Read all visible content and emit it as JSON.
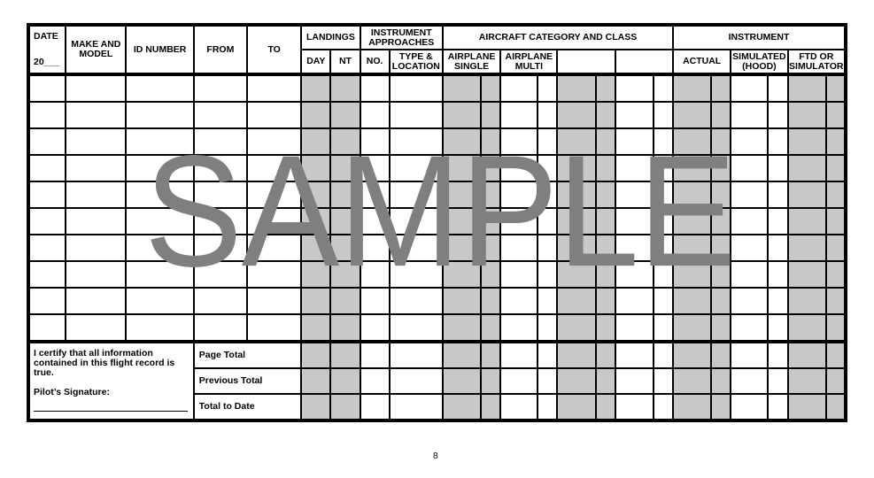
{
  "header": {
    "date": "DATE",
    "year": "20___",
    "make_model": "MAKE AND MODEL",
    "id_number": "ID NUMBER",
    "from": "FROM",
    "to": "TO",
    "landings": "LANDINGS",
    "landings_day": "DAY",
    "landings_nt": "NT",
    "instrument_approaches": "INSTRUMENT APPROACHES",
    "approaches_no": "NO.",
    "approaches_type": "TYPE & LOCATION",
    "aircraft_category": "AIRCRAFT CATEGORY AND CLASS",
    "airplane_single": "AIRPLANE SINGLE",
    "airplane_multi": "AIRPLANE MULTI",
    "category_blank_1": "",
    "category_blank_2": "",
    "instrument": "INSTRUMENT",
    "actual": "ACTUAL",
    "simulated": "SIMULATED (HOOD)",
    "ftd": "FTD OR SIMULATOR"
  },
  "entry_row_count": 10,
  "shaded_color": "#c8c8c8",
  "footer": {
    "certify": "I certify that all information contained in this flight record is true.",
    "signature_label": "Pilot’s Signature:",
    "page_total": "Page Total",
    "previous_total": "Previous Total",
    "total_to_date": "Total to Date"
  },
  "watermark": "SAMPLE",
  "page_number": "8"
}
